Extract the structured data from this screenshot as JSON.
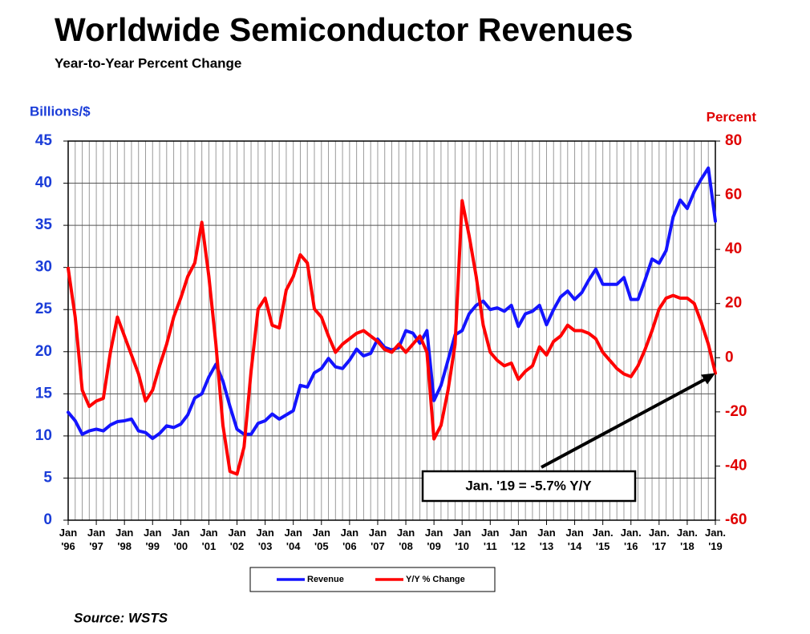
{
  "chart_data": {
    "type": "line",
    "title": "Worldwide Semiconductor Revenues",
    "subtitle": "Year-to-Year Percent Change",
    "y_label": "Billions/$",
    "y2_label": "Percent",
    "source": "Source: WSTS",
    "annotation": "Jan. '19 = -5.7% Y/Y",
    "categories": [
      "Jan '96",
      null,
      null,
      null,
      "Jan '97",
      null,
      null,
      null,
      "Jan '98",
      null,
      null,
      null,
      "Jan '99",
      null,
      null,
      null,
      "Jan '00",
      null,
      null,
      null,
      "Jan '01",
      null,
      null,
      null,
      "Jan '02",
      null,
      null,
      null,
      "Jan '03",
      null,
      null,
      null,
      "Jan '04",
      null,
      null,
      null,
      "Jan '05",
      null,
      null,
      null,
      "Jan '06",
      null,
      null,
      null,
      "Jan '07",
      null,
      null,
      null,
      "Jan '08",
      null,
      null,
      null,
      "Jan '09",
      null,
      null,
      null,
      "Jan '10",
      null,
      null,
      null,
      "Jan '11",
      null,
      null,
      null,
      "Jan '12",
      null,
      null,
      null,
      "Jan '13",
      null,
      null,
      null,
      "Jan '14",
      null,
      null,
      null,
      "Jan. '15",
      null,
      null,
      null,
      "Jan. '16",
      null,
      null,
      null,
      "Jan. '17",
      null,
      null,
      null,
      "Jan. '18",
      null,
      null,
      null,
      "Jan. '19"
    ],
    "series": [
      {
        "name": "Revenue",
        "color": "#1414ff",
        "axis": "y",
        "values": [
          12.8,
          11.8,
          10.2,
          10.6,
          10.8,
          10.6,
          11.3,
          11.7,
          11.8,
          12.0,
          10.6,
          10.4,
          9.7,
          10.3,
          11.2,
          11.0,
          11.4,
          12.5,
          14.5,
          15.0,
          17.0,
          18.5,
          16.5,
          13.5,
          10.8,
          10.2,
          10.2,
          11.5,
          11.8,
          12.6,
          12.0,
          12.5,
          13.0,
          16.0,
          15.8,
          17.5,
          18.0,
          19.2,
          18.2,
          18.0,
          19.0,
          20.3,
          19.5,
          19.8,
          21.5,
          20.5,
          20.2,
          20.5,
          22.5,
          22.2,
          21.0,
          22.5,
          14.2,
          16.0,
          19.0,
          22.0,
          22.5,
          24.5,
          25.5,
          26.0,
          25.0,
          25.2,
          24.8,
          25.5,
          23.0,
          24.5,
          24.8,
          25.5,
          23.2,
          25.0,
          26.5,
          27.2,
          26.2,
          27.0,
          28.5,
          29.8,
          28.0,
          28.0,
          28.0,
          28.8,
          26.2,
          26.2,
          28.5,
          31.0,
          30.5,
          32.0,
          36.0,
          38.0,
          37.0,
          39.0,
          40.5,
          41.8,
          35.5
        ]
      },
      {
        "name": "Y/Y % Change",
        "color": "#ff0000",
        "axis": "y2",
        "values": [
          33,
          15,
          -12,
          -18,
          -16,
          -15,
          2,
          15,
          8,
          1,
          -6,
          -16,
          -12,
          -3,
          5,
          15,
          22,
          30,
          35,
          50,
          30,
          5,
          -25,
          -42,
          -43,
          -33,
          -5,
          18,
          22,
          12,
          11,
          25,
          30,
          38,
          35,
          18,
          15,
          8,
          2,
          5,
          7,
          9,
          10,
          8,
          6,
          3,
          2,
          5,
          2,
          5,
          8,
          2,
          -30,
          -25,
          -12,
          5,
          58,
          45,
          30,
          12,
          2,
          -1,
          -3,
          -2,
          -8,
          -5,
          -3,
          4,
          1,
          6,
          8,
          12,
          10,
          10,
          9,
          7,
          2,
          -1,
          -4,
          -6,
          -7,
          -3,
          3,
          10,
          18,
          22,
          23,
          22,
          22,
          20,
          13,
          5,
          -5.7
        ]
      }
    ],
    "ylim": [
      0,
      45
    ],
    "yticks": [
      0,
      5,
      10,
      15,
      20,
      25,
      30,
      35,
      40,
      45
    ],
    "y2lim": [
      -60,
      80
    ],
    "y2ticks": [
      -60,
      -40,
      -20,
      0,
      20,
      40,
      60,
      80
    ],
    "grid": true
  }
}
